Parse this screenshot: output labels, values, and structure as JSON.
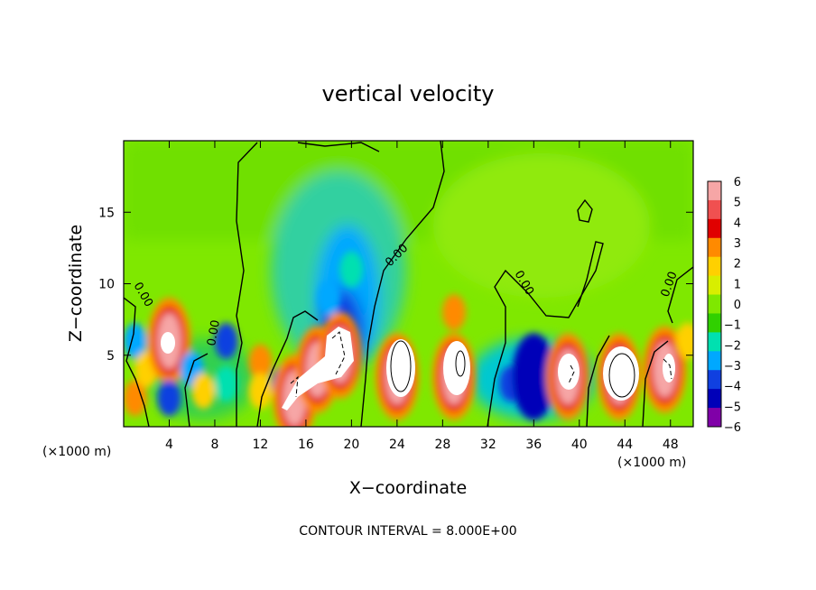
{
  "chart_data": {
    "type": "heatmap",
    "title": "vertical velocity",
    "xlabel": "X−coordinate",
    "ylabel": "Z−coordinate",
    "x_unit": "(×1000 m)",
    "x_unit_right": "(×1000 m)",
    "footer": "CONTOUR INTERVAL = 8.000E+00",
    "contour_label": "0.00",
    "xlim": [
      0,
      50
    ],
    "ylim": [
      0,
      20
    ],
    "x_ticks": [
      4,
      8,
      12,
      16,
      20,
      24,
      28,
      32,
      36,
      40,
      44,
      48
    ],
    "y_ticks": [
      5,
      10,
      15
    ],
    "colorbar": {
      "labels": [
        "6",
        "5",
        "4",
        "3",
        "2",
        "1",
        "0",
        "−1",
        "−2",
        "−3",
        "−4",
        "−5",
        "−6"
      ],
      "colors": [
        "#f6a6a6",
        "#f05050",
        "#e00000",
        "#ff8a00",
        "#ffd000",
        "#d8ee00",
        "#7fe800",
        "#30d000",
        "#00e0b0",
        "#00a8ff",
        "#1040e0",
        "#0000b8",
        "#8000a8"
      ]
    },
    "cells": [
      {
        "x": 1,
        "z": 2,
        "w": 3
      },
      {
        "x": 1,
        "z": 6,
        "w": -3
      },
      {
        "x": 2,
        "z": 4,
        "w": 2
      },
      {
        "x": 4,
        "z": 6,
        "w": 5
      },
      {
        "x": 4,
        "z": 2,
        "w": -4
      },
      {
        "x": 6,
        "z": 4,
        "w": -3
      },
      {
        "x": 7,
        "z": 2.5,
        "w": 2
      },
      {
        "x": 9,
        "z": 6,
        "w": -4
      },
      {
        "x": 9,
        "z": 3,
        "w": -2
      },
      {
        "x": 12,
        "z": 4.5,
        "w": 3
      },
      {
        "x": 12,
        "z": 2.5,
        "w": 2
      },
      {
        "x": 14,
        "z": 3,
        "w": -4
      },
      {
        "x": 15,
        "z": 2,
        "w": 6
      },
      {
        "x": 17,
        "z": 4,
        "w": 6
      },
      {
        "x": 19,
        "z": 5,
        "w": 6
      },
      {
        "x": 18,
        "z": 9,
        "w": -3
      },
      {
        "x": 20,
        "z": 11,
        "w": -2
      },
      {
        "x": 24,
        "z": 3.5,
        "w": 6
      },
      {
        "x": 29,
        "z": 3.5,
        "w": 6
      },
      {
        "x": 29,
        "z": 8,
        "w": 3
      },
      {
        "x": 34,
        "z": 3,
        "w": -4
      },
      {
        "x": 36,
        "z": 3.5,
        "w": -5
      },
      {
        "x": 39,
        "z": 3.5,
        "w": 6
      },
      {
        "x": 43.5,
        "z": 3.5,
        "w": 6
      },
      {
        "x": 47.5,
        "z": 4,
        "w": 6
      },
      {
        "x": 49.5,
        "z": 6,
        "w": 2
      }
    ]
  }
}
